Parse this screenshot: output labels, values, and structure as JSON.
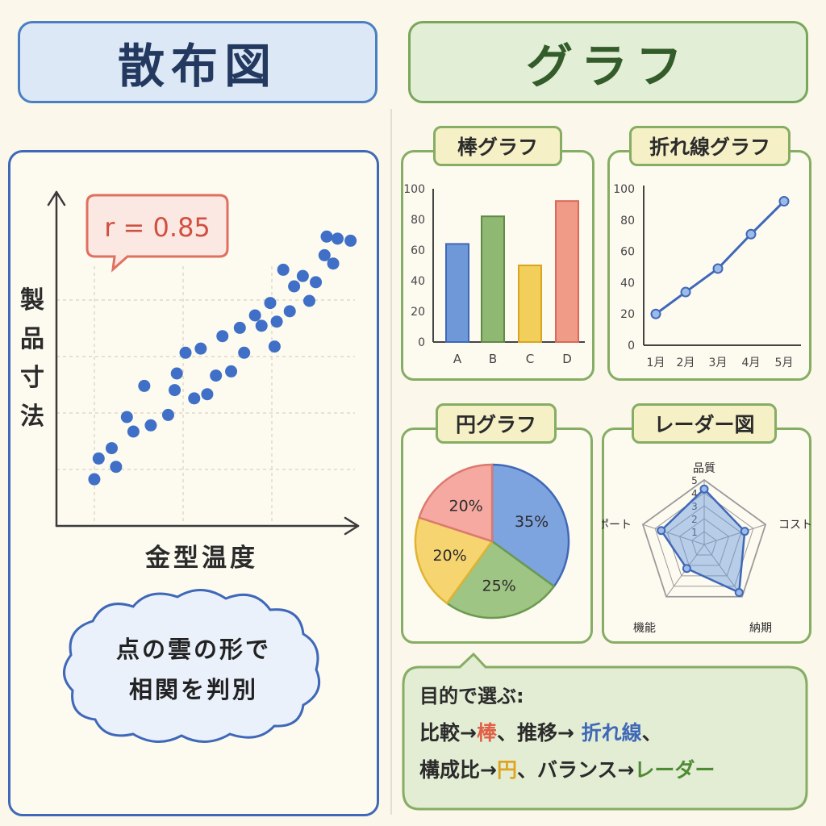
{
  "left_title": "散布図",
  "right_title": "グラフ",
  "scatter": {
    "ylabel": "製品寸法",
    "xlabel": "金型温度",
    "r_label": "r = 0.85",
    "cloud_line1": "点の雲の形で",
    "cloud_line2": "相関を判別"
  },
  "bar_tag": "棒グラフ",
  "line_tag": "折れ線グラフ",
  "pie_tag": "円グラフ",
  "radar_tag": "レーダー図",
  "summary": {
    "heading": "目的で選ぶ:",
    "l1a": "比較→",
    "l1b": "棒",
    "l1c": "、推移→ ",
    "l1d": "折れ線",
    "l1e": "、",
    "l2a": "構成比→",
    "l2b": "円",
    "l2c": "、バランス→",
    "l2d": "レーダー"
  },
  "colors": {
    "blue": "#3f68b8",
    "green": "#86ad64",
    "red": "#e07060",
    "bar_blue": "#6f98d8",
    "bar_green": "#8fb872",
    "bar_yellow": "#f2cf5a",
    "bar_red": "#f09a88"
  },
  "chart_data": [
    {
      "type": "scatter",
      "xlabel": "金型温度",
      "ylabel": "製品寸法",
      "annotation": "r = 0.85",
      "points": [
        [
          1,
          1.2
        ],
        [
          1.2,
          2.2
        ],
        [
          1.8,
          2.7
        ],
        [
          2,
          1.8
        ],
        [
          2.5,
          4.2
        ],
        [
          2.8,
          3.5
        ],
        [
          3.3,
          5.7
        ],
        [
          3.6,
          3.8
        ],
        [
          4.4,
          4.3
        ],
        [
          4.7,
          5.5
        ],
        [
          4.8,
          6.3
        ],
        [
          5.2,
          7.3
        ],
        [
          5.6,
          5.1
        ],
        [
          5.9,
          7.5
        ],
        [
          6.2,
          5.3
        ],
        [
          6.6,
          6.2
        ],
        [
          6.9,
          8.1
        ],
        [
          7.3,
          6.4
        ],
        [
          7.7,
          8.5
        ],
        [
          7.9,
          7.3
        ],
        [
          8.4,
          9.1
        ],
        [
          8.7,
          8.6
        ],
        [
          9.1,
          9.7
        ],
        [
          9.3,
          7.6
        ],
        [
          9.4,
          8.8
        ],
        [
          9.7,
          11.3
        ],
        [
          10,
          9.3
        ],
        [
          10.2,
          10.5
        ],
        [
          10.6,
          11
        ],
        [
          10.9,
          9.8
        ],
        [
          11.2,
          10.7
        ],
        [
          11.6,
          12
        ],
        [
          11.7,
          12.9
        ],
        [
          12,
          11.6
        ],
        [
          12.2,
          12.8
        ],
        [
          12.8,
          12.7
        ]
      ],
      "grid": true
    },
    {
      "type": "bar",
      "categories": [
        "A",
        "B",
        "C",
        "D"
      ],
      "values": [
        64,
        82,
        50,
        92
      ],
      "ylim": [
        0,
        100
      ],
      "yticks": [
        "0",
        "20",
        "40",
        "60",
        "80",
        "100"
      ]
    },
    {
      "type": "line",
      "x": [
        "1月",
        "2月",
        "3月",
        "4月",
        "5月"
      ],
      "y": [
        20,
        34,
        49,
        71,
        92
      ],
      "ylim": [
        0,
        100
      ],
      "yticks": [
        "0",
        "20",
        "40",
        "60",
        "80",
        "100"
      ]
    },
    {
      "type": "pie",
      "labels": [
        "35%",
        "25%",
        "20%",
        "20%"
      ],
      "values": [
        35,
        25,
        20,
        20
      ]
    },
    {
      "type": "radar",
      "axes": [
        "品質",
        "コスト",
        "納期",
        "機能",
        "サポート"
      ],
      "values": [
        4.3,
        3.3,
        4.6,
        2.3,
        3.5
      ],
      "rmax": 5,
      "ticks": [
        "1",
        "2",
        "3",
        "4",
        "5"
      ]
    }
  ]
}
